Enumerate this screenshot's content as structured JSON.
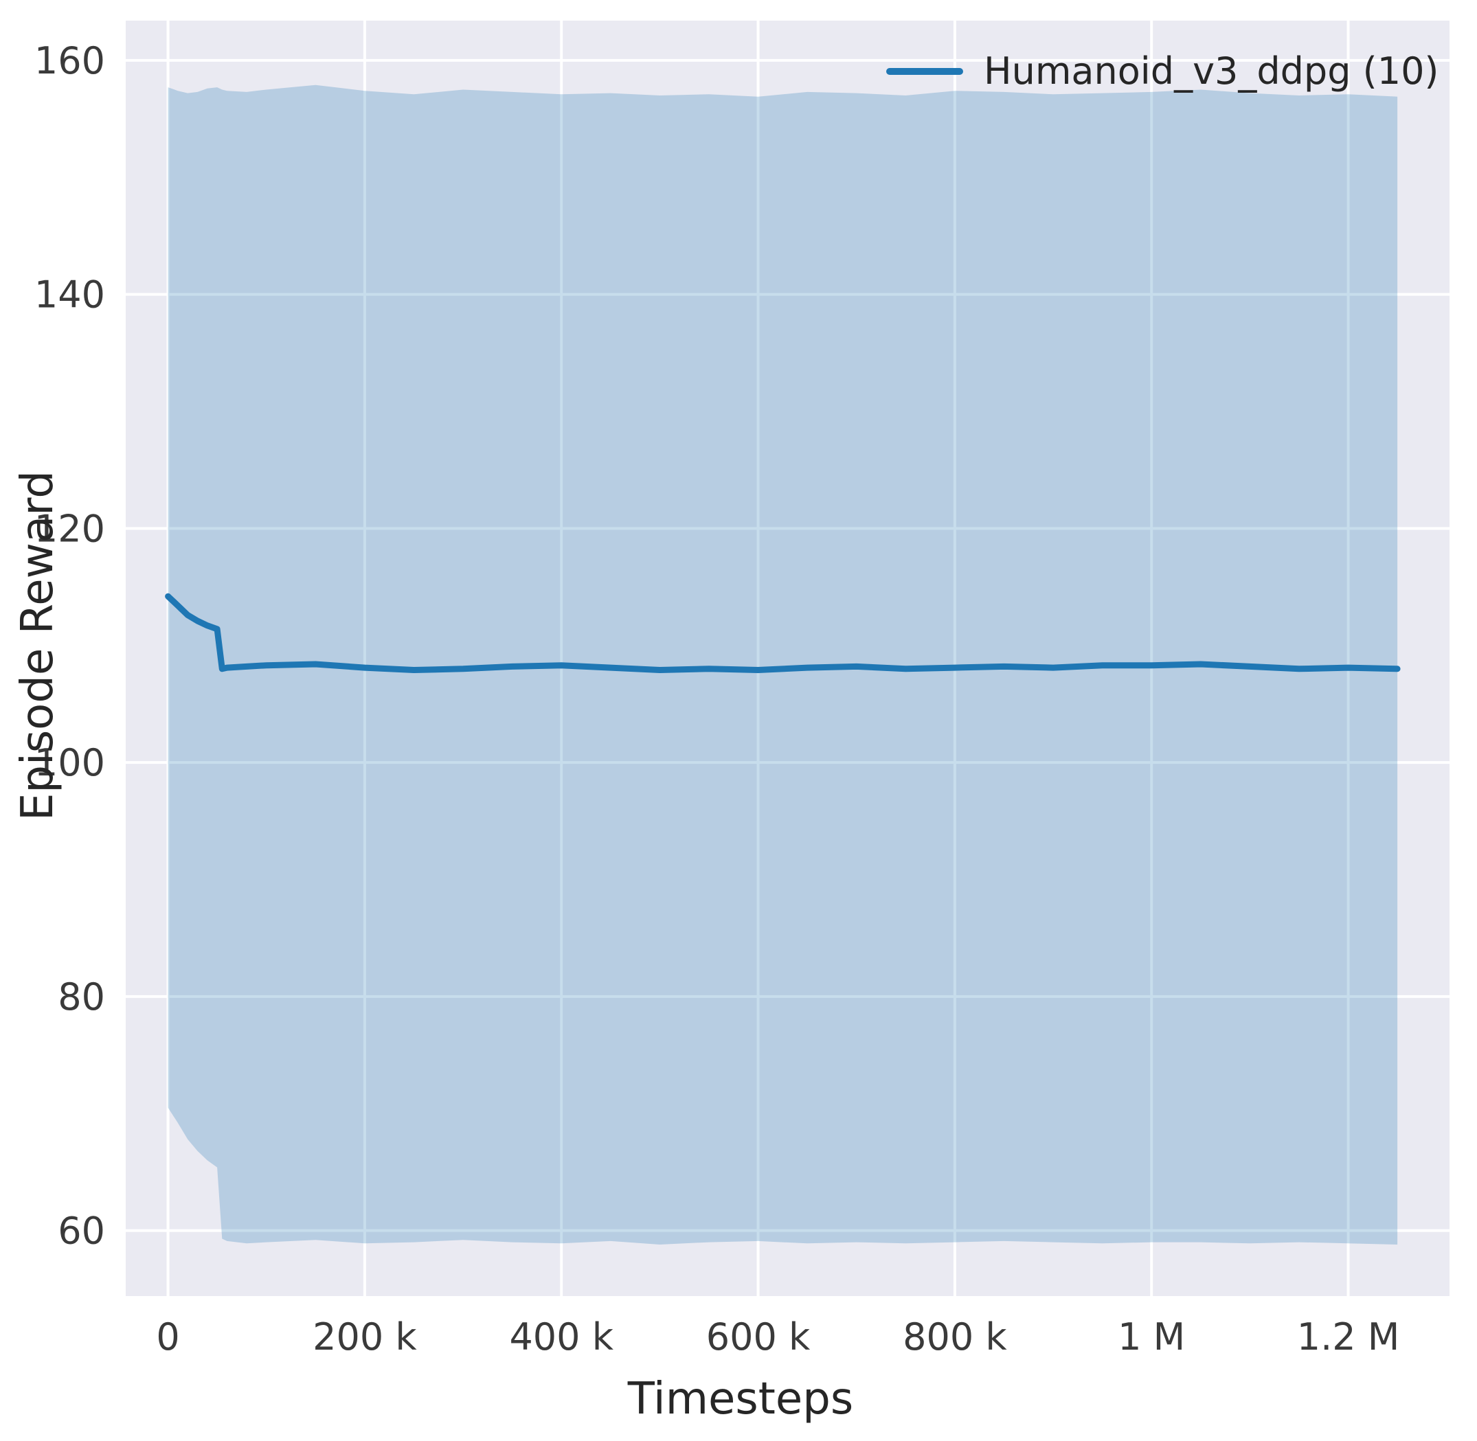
{
  "chart_data": {
    "type": "line",
    "title": "",
    "xlabel": "Timesteps",
    "ylabel": "Episode Reward",
    "grid": true,
    "legend_position": "upper right",
    "legend": [
      {
        "name": "Humanoid_v3_ddpg (10)",
        "color": "#1f77b4"
      }
    ],
    "xlim": [
      -43000,
      1303000
    ],
    "ylim": [
      54.4,
      163.4
    ],
    "x_ticks": {
      "values": [
        0,
        200000,
        400000,
        600000,
        800000,
        1000000,
        1200000
      ],
      "labels": [
        "0",
        "200 k",
        "400 k",
        "600 k",
        "800 k",
        "1 M",
        "1.2 M"
      ]
    },
    "y_ticks": {
      "values": [
        60,
        80,
        100,
        120,
        140,
        160
      ],
      "labels": [
        "60",
        "80",
        "100",
        "120",
        "140",
        "160"
      ]
    },
    "colors": {
      "axes_background": "#eaeaf2",
      "grid": "#ffffff",
      "tick_text": "#3a3a3a",
      "line": "#1f77b4",
      "band": "#1f77b4"
    },
    "band_opacity": 0.25,
    "series": [
      {
        "name": "Humanoid_v3_ddpg (10)",
        "color": "#1f77b4",
        "x": [
          0,
          10000,
          20000,
          30000,
          40000,
          50000,
          55000,
          60000,
          80000,
          100000,
          150000,
          200000,
          250000,
          300000,
          350000,
          400000,
          450000,
          500000,
          550000,
          600000,
          650000,
          700000,
          750000,
          800000,
          850000,
          900000,
          950000,
          1000000,
          1050000,
          1100000,
          1150000,
          1200000,
          1250000
        ],
        "mean": [
          114.2,
          113.4,
          112.6,
          112.1,
          111.7,
          111.4,
          108.0,
          108.1,
          108.2,
          108.3,
          108.4,
          108.1,
          107.9,
          108.0,
          108.2,
          108.3,
          108.1,
          107.9,
          108.0,
          107.9,
          108.1,
          108.2,
          108.0,
          108.1,
          108.2,
          108.1,
          108.3,
          108.3,
          108.4,
          108.2,
          108.0,
          108.1,
          108.0
        ],
        "upper": [
          157.7,
          157.4,
          157.2,
          157.3,
          157.6,
          157.7,
          157.5,
          157.4,
          157.3,
          157.5,
          157.9,
          157.4,
          157.1,
          157.5,
          157.3,
          157.1,
          157.2,
          157.0,
          157.1,
          156.9,
          157.3,
          157.2,
          157.0,
          157.4,
          157.3,
          157.1,
          157.2,
          157.3,
          157.5,
          157.2,
          157.0,
          157.1,
          156.9
        ],
        "lower": [
          70.5,
          69.2,
          67.8,
          66.8,
          66.0,
          65.4,
          59.3,
          59.1,
          58.9,
          59.0,
          59.2,
          58.9,
          59.0,
          59.2,
          59.0,
          58.9,
          59.1,
          58.8,
          59.0,
          59.1,
          58.9,
          59.0,
          58.9,
          59.0,
          59.1,
          59.0,
          58.9,
          59.0,
          59.0,
          58.9,
          59.0,
          58.9,
          58.8
        ]
      }
    ]
  }
}
